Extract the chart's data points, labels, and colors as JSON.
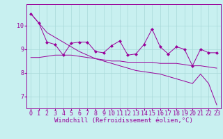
{
  "line_wiggly": [
    10.5,
    10.1,
    9.3,
    9.2,
    8.75,
    9.25,
    9.3,
    9.3,
    8.9,
    8.85,
    9.15,
    9.35,
    8.75,
    8.8,
    9.2,
    9.85,
    9.1,
    8.8,
    9.1,
    9.0,
    8.3,
    9.0,
    8.85,
    8.85
  ],
  "line_diagonal": [
    10.5,
    10.1,
    9.7,
    9.5,
    9.3,
    9.1,
    8.9,
    8.75,
    8.6,
    8.5,
    8.4,
    8.3,
    8.2,
    8.1,
    8.05,
    8.0,
    7.95,
    7.85,
    7.75,
    7.65,
    7.55,
    7.95,
    7.55,
    6.65
  ],
  "line_flat": [
    8.65,
    8.65,
    8.7,
    8.75,
    8.75,
    8.75,
    8.7,
    8.65,
    8.6,
    8.55,
    8.5,
    8.5,
    8.45,
    8.45,
    8.45,
    8.45,
    8.4,
    8.4,
    8.4,
    8.35,
    8.3,
    8.3,
    8.25,
    8.2
  ],
  "x": [
    0,
    1,
    2,
    3,
    4,
    5,
    6,
    7,
    8,
    9,
    10,
    11,
    12,
    13,
    14,
    15,
    16,
    17,
    18,
    19,
    20,
    21,
    22,
    23
  ],
  "line_color": "#990099",
  "marker": "D",
  "marker_size": 2.5,
  "bg_color": "#c8f0f0",
  "grid_color": "#a8d8d8",
  "xlabel": "Windchill (Refroidissement éolien,°C)",
  "ylim": [
    6.5,
    10.9
  ],
  "xlim": [
    -0.5,
    23.5
  ],
  "tick_fontsize": 6,
  "xlabel_fontsize": 6.5,
  "yticks": [
    7,
    8,
    9,
    10
  ],
  "figsize": [
    3.2,
    2.0
  ],
  "dpi": 100
}
